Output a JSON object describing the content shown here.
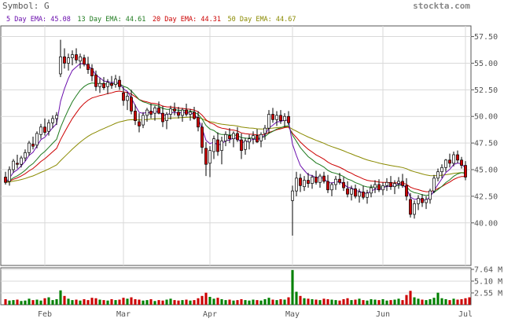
{
  "header": {
    "symbol_label": "Symbol: G",
    "site": "stockta.com",
    "legend": [
      {
        "label": "5 Day EMA: 45.08",
        "color": "#6a0dad"
      },
      {
        "label": "13 Day EMA: 44.61",
        "color": "#1e7a1e"
      },
      {
        "label": "20 Day EMA: 44.31",
        "color": "#cc0000"
      },
      {
        "label": "50 Day EMA: 44.67",
        "color": "#8a8a00"
      }
    ]
  },
  "colors": {
    "up": "#008000",
    "down": "#cc0000",
    "wick": "#000000",
    "grid": "#d9d9d9"
  },
  "chart_data": {
    "type": "candlestick",
    "price_axis": {
      "ticks": [
        "57.50",
        "55.00",
        "52.50",
        "50.00",
        "47.50",
        "45.00",
        "42.50",
        "40.00"
      ],
      "ylim": [
        36.0,
        58.5
      ]
    },
    "volume_axis": {
      "ticks": [
        "7.64 M",
        "5.10 M",
        "2.55 M"
      ],
      "ylim": [
        0,
        7.64
      ]
    },
    "x_labels": [
      {
        "label": "Feb",
        "index": 10
      },
      {
        "label": "Mar",
        "index": 30
      },
      {
        "label": "Apr",
        "index": 52
      },
      {
        "label": "May",
        "index": 73
      },
      {
        "label": "Jun",
        "index": 96
      },
      {
        "label": "Jul",
        "index": 117
      }
    ],
    "candles": [
      [
        44.3,
        44.8,
        43.6,
        43.8
      ],
      [
        43.9,
        45.3,
        43.5,
        45.0
      ],
      [
        45.0,
        46.0,
        44.7,
        45.8
      ],
      [
        45.6,
        46.4,
        45.1,
        45.5
      ],
      [
        45.5,
        46.3,
        45.2,
        46.1
      ],
      [
        46.1,
        46.9,
        45.8,
        46.6
      ],
      [
        46.6,
        47.7,
        46.3,
        47.5
      ],
      [
        47.4,
        48.1,
        46.9,
        47.2
      ],
      [
        47.3,
        48.6,
        47.0,
        48.4
      ],
      [
        48.3,
        49.3,
        47.9,
        49.0
      ],
      [
        49.0,
        49.8,
        48.2,
        48.5
      ],
      [
        48.6,
        49.7,
        48.2,
        49.4
      ],
      [
        49.4,
        50.1,
        48.9,
        49.8
      ],
      [
        49.8,
        50.4,
        49.2,
        50.1
      ],
      [
        54.0,
        57.2,
        53.7,
        55.6
      ],
      [
        55.6,
        56.4,
        54.5,
        55.0
      ],
      [
        55.0,
        55.9,
        54.3,
        55.5
      ],
      [
        55.5,
        56.2,
        54.8,
        55.8
      ],
      [
        55.8,
        56.4,
        55.0,
        55.3
      ],
      [
        55.2,
        55.9,
        54.5,
        55.6
      ],
      [
        55.5,
        55.8,
        54.7,
        54.9
      ],
      [
        54.9,
        55.6,
        54.0,
        54.4
      ],
      [
        54.5,
        54.9,
        53.3,
        53.8
      ],
      [
        53.9,
        54.3,
        52.4,
        52.8
      ],
      [
        52.8,
        53.6,
        52.2,
        53.1
      ],
      [
        53.1,
        53.7,
        52.5,
        52.7
      ],
      [
        52.8,
        53.5,
        52.1,
        53.2
      ],
      [
        53.1,
        53.8,
        52.6,
        52.9
      ],
      [
        53.0,
        53.9,
        52.7,
        53.5
      ],
      [
        53.4,
        53.8,
        52.5,
        52.8
      ],
      [
        52.2,
        52.8,
        51.0,
        51.5
      ],
      [
        51.5,
        52.3,
        50.6,
        51.9
      ],
      [
        51.8,
        52.5,
        50.2,
        50.5
      ],
      [
        50.5,
        51.1,
        49.2,
        49.6
      ],
      [
        49.5,
        50.3,
        48.5,
        49.1
      ],
      [
        49.2,
        50.4,
        48.9,
        50.1
      ],
      [
        50.1,
        50.8,
        49.5,
        50.6
      ],
      [
        50.5,
        51.2,
        49.8,
        50.2
      ],
      [
        50.3,
        51.0,
        49.6,
        50.8
      ],
      [
        50.8,
        51.4,
        50.2,
        50.3
      ],
      [
        50.3,
        51.0,
        49.0,
        49.5
      ],
      [
        49.6,
        50.4,
        48.8,
        50.2
      ],
      [
        50.2,
        51.0,
        49.7,
        50.7
      ],
      [
        50.7,
        51.3,
        50.1,
        50.5
      ],
      [
        50.4,
        50.9,
        49.8,
        50.1
      ],
      [
        50.1,
        50.8,
        49.5,
        50.6
      ],
      [
        50.6,
        51.2,
        50.0,
        50.2
      ],
      [
        50.2,
        50.7,
        49.6,
        50.4
      ],
      [
        50.4,
        50.9,
        49.7,
        49.8
      ],
      [
        49.9,
        50.5,
        48.6,
        49.0
      ],
      [
        49.0,
        49.4,
        46.5,
        47.1
      ],
      [
        47.0,
        47.6,
        44.4,
        45.5
      ],
      [
        45.6,
        47.2,
        44.3,
        46.8
      ],
      [
        46.7,
        48.2,
        46.0,
        47.9
      ],
      [
        47.8,
        48.5,
        46.3,
        46.7
      ],
      [
        46.8,
        48.1,
        45.5,
        47.7
      ],
      [
        47.7,
        48.6,
        47.2,
        48.3
      ],
      [
        48.2,
        48.9,
        47.5,
        47.9
      ],
      [
        47.9,
        48.6,
        47.1,
        48.4
      ],
      [
        48.4,
        49.0,
        47.6,
        47.8
      ],
      [
        47.8,
        48.4,
        46.0,
        46.8
      ],
      [
        46.9,
        48.0,
        46.4,
        47.7
      ],
      [
        47.6,
        48.3,
        46.9,
        47.9
      ],
      [
        47.9,
        48.6,
        47.4,
        48.2
      ],
      [
        48.2,
        48.8,
        47.5,
        47.6
      ],
      [
        47.7,
        48.5,
        47.1,
        48.3
      ],
      [
        48.4,
        49.2,
        47.8,
        48.9
      ],
      [
        48.9,
        50.6,
        48.4,
        50.2
      ],
      [
        50.2,
        50.8,
        49.4,
        49.7
      ],
      [
        49.7,
        50.5,
        49.1,
        50.1
      ],
      [
        50.1,
        50.6,
        49.3,
        49.6
      ],
      [
        49.6,
        50.3,
        49.0,
        50.0
      ],
      [
        50.0,
        50.5,
        49.2,
        49.4
      ],
      [
        42.1,
        43.5,
        38.8,
        43.0
      ],
      [
        43.0,
        44.8,
        42.5,
        44.2
      ],
      [
        44.2,
        44.6,
        42.9,
        43.5
      ],
      [
        43.4,
        44.4,
        43.0,
        44.0
      ],
      [
        44.0,
        44.7,
        43.3,
        43.7
      ],
      [
        43.7,
        44.5,
        43.2,
        44.3
      ],
      [
        44.3,
        44.9,
        43.6,
        43.8
      ],
      [
        43.8,
        44.6,
        43.3,
        44.4
      ],
      [
        44.4,
        44.8,
        43.7,
        43.9
      ],
      [
        43.9,
        44.5,
        42.8,
        43.1
      ],
      [
        43.1,
        43.8,
        42.5,
        43.6
      ],
      [
        43.6,
        44.4,
        43.1,
        44.1
      ],
      [
        44.1,
        44.7,
        43.6,
        43.8
      ],
      [
        43.8,
        44.3,
        43.0,
        43.3
      ],
      [
        43.2,
        43.9,
        42.4,
        42.7
      ],
      [
        42.7,
        43.5,
        42.1,
        43.2
      ],
      [
        43.2,
        43.6,
        42.3,
        42.5
      ],
      [
        42.5,
        43.2,
        41.9,
        42.9
      ],
      [
        42.9,
        43.5,
        42.2,
        42.4
      ],
      [
        42.4,
        43.1,
        41.8,
        42.8
      ],
      [
        42.8,
        43.6,
        42.4,
        43.3
      ],
      [
        43.3,
        44.0,
        42.8,
        43.6
      ],
      [
        43.6,
        44.1,
        42.9,
        43.1
      ],
      [
        43.1,
        43.8,
        42.6,
        43.5
      ],
      [
        43.5,
        44.2,
        43.0,
        43.8
      ],
      [
        43.8,
        44.4,
        43.1,
        43.4
      ],
      [
        43.4,
        44.0,
        42.7,
        43.7
      ],
      [
        43.7,
        44.3,
        43.2,
        43.9
      ],
      [
        43.9,
        44.6,
        43.3,
        43.5
      ],
      [
        43.5,
        44.2,
        42.1,
        42.5
      ],
      [
        42.2,
        42.8,
        40.5,
        40.8
      ],
      [
        40.8,
        42.1,
        40.4,
        41.8
      ],
      [
        41.8,
        42.6,
        41.2,
        42.3
      ],
      [
        42.3,
        42.7,
        41.5,
        41.9
      ],
      [
        41.9,
        42.5,
        41.3,
        42.2
      ],
      [
        42.2,
        43.2,
        41.8,
        43.0
      ],
      [
        43.0,
        44.5,
        42.8,
        44.2
      ],
      [
        44.2,
        45.1,
        43.9,
        44.8
      ],
      [
        44.8,
        45.5,
        44.2,
        45.2
      ],
      [
        45.2,
        46.0,
        44.8,
        45.9
      ],
      [
        45.9,
        46.5,
        45.2,
        45.6
      ],
      [
        45.6,
        46.7,
        45.3,
        46.4
      ],
      [
        46.4,
        46.8,
        45.6,
        45.9
      ],
      [
        45.9,
        46.2,
        45.1,
        45.4
      ],
      [
        45.4,
        45.8,
        44.0,
        44.3
      ]
    ],
    "volumes": [
      1.2,
      0.9,
      1.0,
      1.1,
      0.8,
      0.9,
      1.3,
      1.0,
      1.1,
      0.9,
      1.4,
      1.6,
      1.0,
      1.2,
      3.1,
      1.9,
      1.3,
      1.0,
      1.1,
      0.9,
      1.2,
      1.0,
      1.5,
      1.4,
      1.1,
      1.0,
      0.9,
      1.2,
      1.0,
      1.1,
      1.5,
      1.3,
      1.6,
      1.2,
      1.1,
      0.9,
      1.0,
      1.2,
      0.8,
      1.0,
      0.9,
      1.1,
      1.3,
      1.0,
      0.9,
      1.0,
      1.1,
      0.9,
      1.0,
      1.4,
      1.9,
      2.6,
      1.7,
      1.3,
      1.5,
      1.2,
      1.0,
      1.1,
      0.9,
      1.0,
      1.2,
      1.0,
      0.9,
      1.1,
      1.0,
      0.9,
      1.2,
      1.5,
      1.1,
      1.0,
      1.2,
      1.1,
      1.6,
      7.5,
      2.8,
      1.9,
      1.4,
      1.3,
      1.2,
      1.1,
      1.0,
      1.3,
      1.2,
      1.1,
      1.0,
      0.9,
      1.2,
      1.4,
      1.0,
      1.1,
      1.3,
      1.0,
      0.9,
      1.2,
      1.1,
      1.0,
      1.2,
      0.9,
      1.0,
      1.1,
      1.3,
      1.0,
      2.1,
      3.0,
      1.6,
      1.3,
      1.1,
      1.0,
      1.2,
      1.5,
      2.6,
      1.4,
      1.2,
      1.0,
      1.3,
      1.1,
      1.2,
      1.4,
      1.6
    ]
  }
}
